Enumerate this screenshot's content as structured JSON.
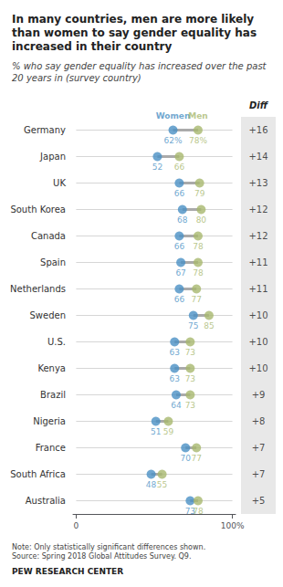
{
  "chart_data": {
    "type": "dumbbell",
    "title": "In many countries, men are more likely\nthan women to say gender equality has\nincreased in their country",
    "subtitle": "% who say gender equality has increased over the past\n20 years in (survey country)",
    "note": "Note: Only statistically significant differences shown.\nSource: Spring 2018 Global Attitudes Survey. Q9.",
    "source": "PEW RESEARCH CENTER",
    "categories": [
      "Germany",
      "Japan",
      "UK",
      "South Korea",
      "Canada",
      "Spain",
      "Netherlands",
      "Sweden",
      "U.S.",
      "Kenya",
      "Brazil",
      "Nigeria",
      "France",
      "South Africa",
      "Australia"
    ],
    "series": [
      {
        "name": "Women",
        "color": "#4a90c4",
        "marker": "circle",
        "values": [
          62,
          52,
          66,
          68,
          66,
          67,
          66,
          75,
          63,
          63,
          64,
          51,
          70,
          48,
          73
        ],
        "value_labels": [
          "62%",
          "52",
          "66",
          "68",
          "66",
          "67",
          "66",
          "75",
          "63",
          "63",
          "64",
          "51",
          "70",
          "48",
          "73"
        ]
      },
      {
        "name": "Men",
        "color": "#a8b86e",
        "marker": "circle",
        "values": [
          78,
          66,
          79,
          80,
          78,
          78,
          77,
          85,
          73,
          73,
          73,
          59,
          77,
          55,
          78
        ],
        "value_labels": [
          "78%",
          "66",
          "79",
          "80",
          "78",
          "78",
          "77",
          "85",
          "73",
          "73",
          "73",
          "59",
          "77",
          "55",
          "78"
        ]
      }
    ],
    "diff": {
      "name": "Diff",
      "values": [
        16,
        14,
        13,
        12,
        12,
        11,
        11,
        10,
        10,
        10,
        9,
        8,
        7,
        7,
        5
      ],
      "value_labels": [
        "+16",
        "+14",
        "+13",
        "+12",
        "+12",
        "+11",
        "+11",
        "+10",
        "+10",
        "+10",
        "+9",
        "+8",
        "+7",
        "+7",
        "+5"
      ]
    },
    "xlim": [
      -2,
      102
    ],
    "xticks": [
      0,
      {
        "value": 100,
        "label": "100%"
      }
    ],
    "grid": true,
    "data_labels": true
  }
}
